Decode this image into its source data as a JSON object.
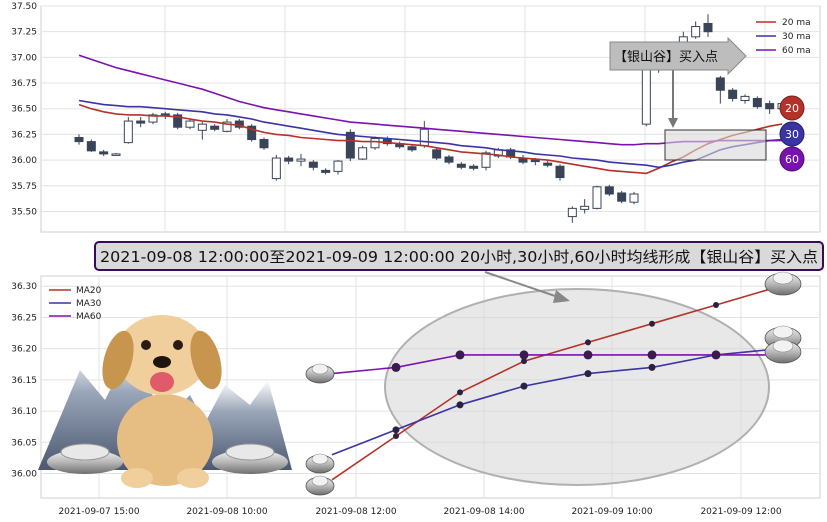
{
  "chart_data": [
    {
      "type": "candlestick",
      "y_ticks": [
        "37.50",
        "37.25",
        "37.00",
        "36.75",
        "36.50",
        "36.25",
        "36.00",
        "35.75",
        "35.50"
      ],
      "ylim": [
        35.3,
        37.5
      ],
      "grid": true,
      "legend": {
        "position": "top-right",
        "entries": [
          "20 ma",
          "30 ma",
          "60 ma"
        ]
      },
      "series_colors": {
        "ma20": "#b5322a",
        "ma30": "#3a34a5",
        "ma60": "#7a12b0",
        "candle_down": "#3a4458",
        "candle_up": "#ffffff"
      },
      "candles": [
        {
          "o": 36.22,
          "c": 36.18,
          "h": 36.25,
          "l": 36.15
        },
        {
          "o": 36.18,
          "c": 36.09,
          "h": 36.2,
          "l": 36.08
        },
        {
          "o": 36.08,
          "c": 36.06,
          "h": 36.1,
          "l": 36.04
        },
        {
          "o": 36.06,
          "c": 36.06,
          "h": 36.07,
          "l": 36.05
        },
        {
          "o": 36.17,
          "c": 36.38,
          "h": 36.42,
          "l": 36.16
        },
        {
          "o": 36.38,
          "c": 36.36,
          "h": 36.42,
          "l": 36.32
        },
        {
          "o": 36.37,
          "c": 36.44,
          "h": 36.46,
          "l": 36.35
        },
        {
          "o": 36.45,
          "c": 36.43,
          "h": 36.47,
          "l": 36.4
        },
        {
          "o": 36.44,
          "c": 36.32,
          "h": 36.46,
          "l": 36.3
        },
        {
          "o": 36.32,
          "c": 36.38,
          "h": 36.4,
          "l": 36.3
        },
        {
          "o": 36.29,
          "c": 36.35,
          "h": 36.37,
          "l": 36.2
        },
        {
          "o": 36.33,
          "c": 36.3,
          "h": 36.35,
          "l": 36.28
        },
        {
          "o": 36.28,
          "c": 36.37,
          "h": 36.4,
          "l": 36.27
        },
        {
          "o": 36.38,
          "c": 36.32,
          "h": 36.4,
          "l": 36.3
        },
        {
          "o": 36.33,
          "c": 36.2,
          "h": 36.35,
          "l": 36.18
        },
        {
          "o": 36.2,
          "c": 36.12,
          "h": 36.22,
          "l": 36.1
        },
        {
          "o": 35.82,
          "c": 36.02,
          "h": 36.05,
          "l": 35.8
        },
        {
          "o": 36.02,
          "c": 35.99,
          "h": 36.04,
          "l": 35.96
        },
        {
          "o": 35.99,
          "c": 36.01,
          "h": 36.06,
          "l": 35.94
        },
        {
          "o": 35.98,
          "c": 35.93,
          "h": 36.0,
          "l": 35.9
        },
        {
          "o": 35.9,
          "c": 35.88,
          "h": 35.92,
          "l": 35.86
        },
        {
          "o": 35.89,
          "c": 35.99,
          "h": 36.0,
          "l": 35.86
        },
        {
          "o": 36.27,
          "c": 36.02,
          "h": 36.3,
          "l": 35.99
        },
        {
          "o": 36.01,
          "c": 36.12,
          "h": 36.14,
          "l": 36.0
        },
        {
          "o": 36.12,
          "c": 36.21,
          "h": 36.23,
          "l": 36.1
        },
        {
          "o": 36.2,
          "c": 36.16,
          "h": 36.23,
          "l": 36.14
        },
        {
          "o": 36.16,
          "c": 36.13,
          "h": 36.18,
          "l": 36.11
        },
        {
          "o": 36.13,
          "c": 36.1,
          "h": 36.15,
          "l": 36.08
        },
        {
          "o": 36.14,
          "c": 36.3,
          "h": 36.38,
          "l": 36.12
        },
        {
          "o": 36.1,
          "c": 36.02,
          "h": 36.12,
          "l": 36.0
        },
        {
          "o": 36.03,
          "c": 35.98,
          "h": 36.05,
          "l": 35.96
        },
        {
          "o": 35.96,
          "c": 35.93,
          "h": 35.98,
          "l": 35.91
        },
        {
          "o": 35.94,
          "c": 35.92,
          "h": 35.96,
          "l": 35.9
        },
        {
          "o": 35.93,
          "c": 36.07,
          "h": 36.09,
          "l": 35.9
        },
        {
          "o": 36.04,
          "c": 36.1,
          "h": 36.12,
          "l": 36.02
        },
        {
          "o": 36.1,
          "c": 36.03,
          "h": 36.12,
          "l": 36.01
        },
        {
          "o": 36.02,
          "c": 35.98,
          "h": 36.05,
          "l": 35.96
        },
        {
          "o": 36.0,
          "c": 35.99,
          "h": 36.02,
          "l": 35.95
        },
        {
          "o": 35.97,
          "c": 35.95,
          "h": 35.99,
          "l": 35.93
        },
        {
          "o": 35.94,
          "c": 35.83,
          "h": 35.96,
          "l": 35.8
        },
        {
          "o": 35.45,
          "c": 35.53,
          "h": 35.55,
          "l": 35.39
        },
        {
          "o": 35.52,
          "c": 35.55,
          "h": 35.62,
          "l": 35.48
        },
        {
          "o": 35.53,
          "c": 35.74,
          "h": 35.75,
          "l": 35.52
        },
        {
          "o": 35.74,
          "c": 35.67,
          "h": 35.76,
          "l": 35.65
        },
        {
          "o": 35.68,
          "c": 35.6,
          "h": 35.7,
          "l": 35.58
        },
        {
          "o": 35.59,
          "c": 35.67,
          "h": 35.69,
          "l": 35.57
        },
        {
          "o": 36.35,
          "c": 36.92,
          "h": 36.95,
          "l": 36.33
        },
        {
          "o": 36.93,
          "c": 36.92,
          "h": 36.95,
          "l": 36.85
        },
        {
          "o": 36.9,
          "c": 37.0,
          "h": 37.02,
          "l": 36.88
        },
        {
          "o": 36.92,
          "c": 37.2,
          "h": 37.25,
          "l": 36.9
        },
        {
          "o": 37.2,
          "c": 37.3,
          "h": 37.35,
          "l": 37.18
        },
        {
          "o": 37.33,
          "c": 37.25,
          "h": 37.42,
          "l": 37.2
        },
        {
          "o": 36.8,
          "c": 36.68,
          "h": 36.82,
          "l": 36.55
        },
        {
          "o": 36.68,
          "c": 36.6,
          "h": 36.7,
          "l": 36.57
        },
        {
          "o": 36.58,
          "c": 36.62,
          "h": 36.64,
          "l": 36.55
        },
        {
          "o": 36.6,
          "c": 36.52,
          "h": 36.62,
          "l": 36.5
        },
        {
          "o": 36.55,
          "c": 36.5,
          "h": 36.58,
          "l": 36.45
        },
        {
          "o": 36.5,
          "c": 36.55,
          "h": 36.57,
          "l": 36.48
        }
      ],
      "ma20": [
        36.54,
        36.5,
        36.47,
        36.45,
        36.44,
        36.44,
        36.43,
        36.43,
        36.42,
        36.4,
        36.38,
        36.37,
        36.35,
        36.34,
        36.3,
        36.27,
        36.25,
        36.24,
        36.22,
        36.21,
        36.2,
        36.19,
        36.19,
        36.18,
        36.18,
        36.17,
        36.16,
        36.15,
        36.14,
        36.12,
        36.1,
        36.08,
        36.07,
        36.06,
        36.05,
        36.03,
        36.02,
        36.01,
        36.0,
        35.98,
        35.96,
        35.94,
        35.92,
        35.9,
        35.89,
        35.88,
        35.87,
        35.92,
        35.98,
        36.03,
        36.1,
        36.16,
        36.2,
        36.24,
        36.27,
        36.3,
        36.33,
        36.35
      ],
      "ma30": [
        36.58,
        36.56,
        36.54,
        36.53,
        36.52,
        36.52,
        36.51,
        36.5,
        36.49,
        36.48,
        36.47,
        36.45,
        36.44,
        36.42,
        36.4,
        36.37,
        36.35,
        36.33,
        36.31,
        36.29,
        36.27,
        36.25,
        36.24,
        36.23,
        36.22,
        36.21,
        36.2,
        36.19,
        36.18,
        36.17,
        36.16,
        36.14,
        36.13,
        36.12,
        36.1,
        36.09,
        36.08,
        36.06,
        36.05,
        36.04,
        36.02,
        36.01,
        36.0,
        35.98,
        35.97,
        35.96,
        35.95,
        35.93,
        35.95,
        35.98,
        36.0,
        36.05,
        36.1,
        36.13,
        36.15,
        36.17,
        36.19,
        36.2
      ],
      "ma60": [
        37.02,
        36.98,
        36.94,
        36.9,
        36.87,
        36.84,
        36.81,
        36.78,
        36.75,
        36.72,
        36.69,
        36.65,
        36.61,
        36.57,
        36.54,
        36.51,
        36.49,
        36.47,
        36.45,
        36.43,
        36.41,
        36.39,
        36.37,
        36.36,
        36.35,
        36.34,
        36.33,
        36.32,
        36.31,
        36.3,
        36.29,
        36.28,
        36.27,
        36.26,
        36.25,
        36.24,
        36.23,
        36.22,
        36.21,
        36.2,
        36.19,
        36.18,
        36.17,
        36.16,
        36.15,
        36.15,
        36.16,
        36.16,
        36.17,
        36.18,
        36.18,
        36.18,
        36.19,
        36.19,
        36.19,
        36.19,
        36.19,
        36.19
      ],
      "annotation_label": "【银山谷】买入点",
      "badges": [
        "20",
        "30",
        "60"
      ]
    },
    {
      "type": "line",
      "x_ticks": [
        "2021-09-07 15:00",
        "2021-09-08 10:00",
        "2021-09-08 12:00",
        "2021-09-08 14:00",
        "2021-09-09 10:00",
        "2021-09-09 12:00"
      ],
      "y_ticks": [
        "36.30",
        "36.25",
        "36.20",
        "36.15",
        "36.10",
        "36.05",
        "36.00"
      ],
      "ylim": [
        35.98,
        36.31
      ],
      "grid": true,
      "legend": {
        "position": "top-left",
        "entries": [
          "MA20",
          "MA30",
          "MA60"
        ]
      },
      "series": [
        {
          "name": "MA20",
          "color": "#b5322a",
          "values": [
            35.99,
            36.06,
            36.13,
            36.18,
            36.21,
            36.24,
            36.27,
            36.3
          ]
        },
        {
          "name": "MA30",
          "color": "#3a34a5",
          "values": [
            36.03,
            36.07,
            36.11,
            36.14,
            36.16,
            36.17,
            36.19,
            36.2
          ]
        },
        {
          "name": "MA60",
          "color": "#7a12b0",
          "values": [
            36.16,
            36.17,
            36.19,
            36.19,
            36.19,
            36.19,
            36.19,
            36.19
          ]
        }
      ]
    }
  ],
  "banner": {
    "text": "2021-09-08 12:00:00至2021-09-09 12:00:00 20小时,30小时,60小时均线形成【银山谷】买入点"
  }
}
